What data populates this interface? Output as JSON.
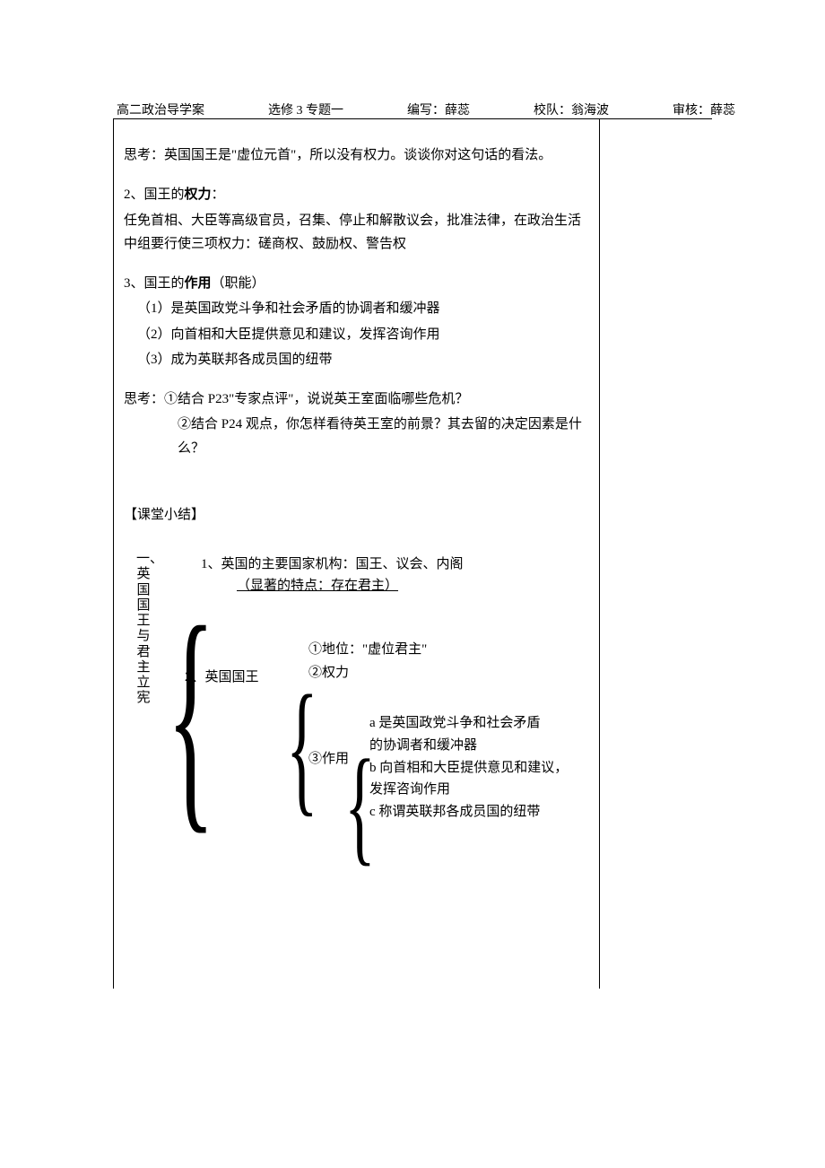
{
  "header": {
    "course": "高二政治导学案",
    "module": "选修 3 专题一",
    "author": "编写：薛蕊",
    "reviewer1": "校队：翁海波",
    "reviewer2": "审核：薛蕊"
  },
  "body": {
    "think1": "思考：英国国王是\"虚位元首\"，所以没有权力。谈谈你对这句话的看法。",
    "sec2_title": "2、国王的权力：",
    "sec2_line1": "任免首相、大臣等高级官员，召集、停止和解散议会，批准法律，在政治生活中组要行使三项权力：磋商权、鼓励权、警告权",
    "sec3_title": "3、国王的作用（职能）",
    "sec3_1": "（1）是英国政党斗争和社会矛盾的协调者和缓冲器",
    "sec3_2": "（2）向首相和大臣提供意见和建议，发挥咨询作用",
    "sec3_3": "（3）成为英联邦各成员国的纽带",
    "think2_1": "思考：①结合 P23\"专家点评\"，说说英王室面临哪些危机？",
    "think2_2": "②结合 P24 观点，你怎样看待英王室的前景？其去留的决定因素是什么？",
    "summary_title": "【课堂小结】"
  },
  "diagram": {
    "root_label": "一、英国国王与君主立宪",
    "item1_line1": "1、英国的主要国家机构：国王、议会、内阁",
    "item1_line2": "（显著的特点：存在君主）",
    "item2_label": "2、英国国王",
    "sub1": "①地位：\"虚位君主\"",
    "sub2": "②权力",
    "sub3_label": "③作用",
    "abc_a1": "a 是英国政党斗争和社会矛盾",
    "abc_a2": "  的协调者和缓冲器",
    "abc_b1": "b 向首相和大臣提供意见和建议，",
    "abc_b2": "  发挥咨询作用",
    "abc_c": "c 称谓英联邦各成员国的纽带"
  }
}
